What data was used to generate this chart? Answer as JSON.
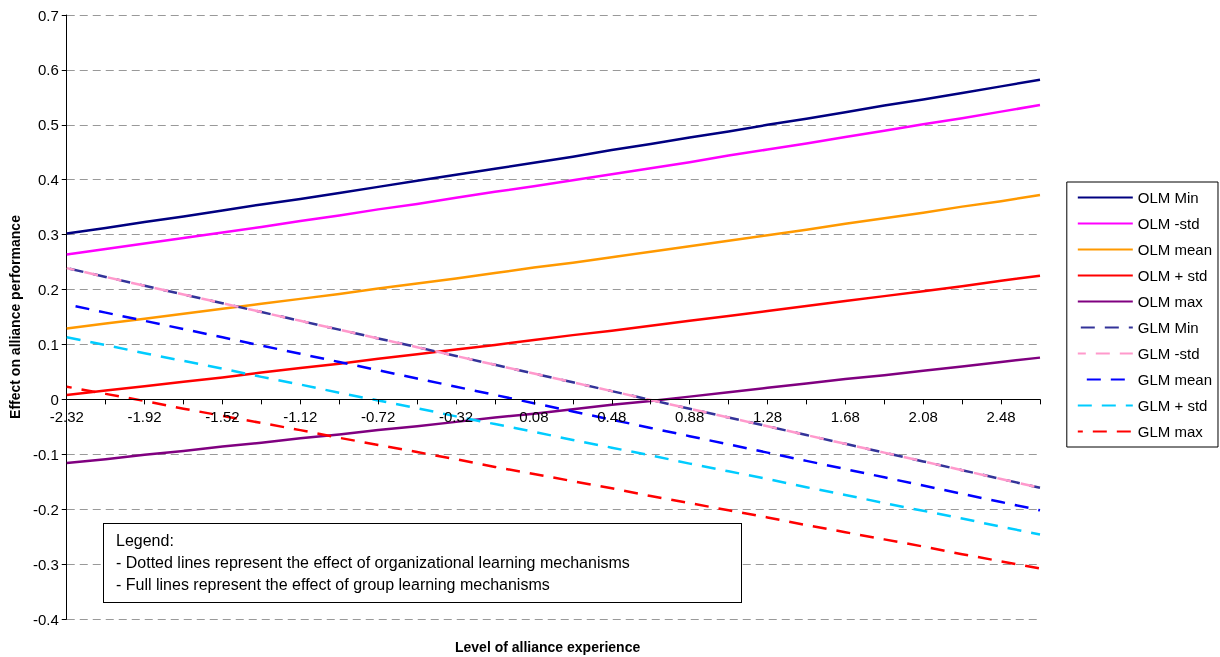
{
  "chart_data": {
    "type": "line",
    "xlabel": "Level of alliance experience",
    "ylabel": "Effect on alliance performance",
    "categories": [
      "-2.32",
      null,
      "-1.92",
      null,
      "-1.52",
      null,
      "-1.12",
      null,
      "-0.72",
      null,
      "-0.32",
      null,
      "0.08",
      null,
      "0.48",
      null,
      "0.88",
      null,
      "1.28",
      null,
      "1.68",
      null,
      "2.08",
      null,
      "2.48",
      null
    ],
    "ylim": [
      -0.4,
      0.7
    ],
    "yticks": [
      -0.4,
      -0.3,
      -0.2,
      -0.1,
      0,
      0.1,
      0.2,
      0.3,
      0.4,
      0.5,
      0.6,
      0.7
    ],
    "grid": "y",
    "legend": "right",
    "marker": "none",
    "annotations": [
      "Legend:",
      "- Dotted lines represent the effect of organizational learning mechanisms",
      "- Full lines represent the effect of group learning mechanisms"
    ],
    "series": [
      {
        "name": "OLM Min",
        "color": "#000080",
        "line_style": "solid",
        "values": [
          0.302,
          0.312,
          0.323,
          0.333,
          0.344,
          0.355,
          0.365,
          0.376,
          0.387,
          0.398,
          0.409,
          0.42,
          0.431,
          0.442,
          0.454,
          0.465,
          0.477,
          0.488,
          0.5,
          0.511,
          0.523,
          0.535,
          0.546,
          0.558,
          0.57,
          0.582
        ]
      },
      {
        "name": "OLM -std",
        "color": "#ff00ff",
        "line_style": "solid",
        "values": [
          0.264,
          0.274,
          0.284,
          0.294,
          0.304,
          0.314,
          0.325,
          0.335,
          0.346,
          0.356,
          0.367,
          0.378,
          0.388,
          0.399,
          0.41,
          0.421,
          0.432,
          0.444,
          0.455,
          0.466,
          0.478,
          0.489,
          0.501,
          0.512,
          0.524,
          0.536
        ]
      },
      {
        "name": "OLM mean",
        "color": "#ff9900",
        "line_style": "solid",
        "values": [
          0.129,
          0.138,
          0.147,
          0.156,
          0.165,
          0.174,
          0.183,
          0.192,
          0.202,
          0.211,
          0.22,
          0.23,
          0.24,
          0.249,
          0.259,
          0.269,
          0.279,
          0.289,
          0.299,
          0.309,
          0.32,
          0.33,
          0.34,
          0.351,
          0.361,
          0.372
        ]
      },
      {
        "name": "OLM + std",
        "color": "#ff0000",
        "line_style": "solid",
        "values": [
          0.008,
          0.016,
          0.024,
          0.032,
          0.04,
          0.049,
          0.057,
          0.065,
          0.074,
          0.082,
          0.091,
          0.099,
          0.108,
          0.117,
          0.125,
          0.134,
          0.143,
          0.152,
          0.161,
          0.17,
          0.179,
          0.188,
          0.197,
          0.206,
          0.216,
          0.225
        ]
      },
      {
        "name": "OLM max",
        "color": "#800080",
        "line_style": "solid",
        "values": [
          -0.116,
          -0.109,
          -0.101,
          -0.094,
          -0.086,
          -0.079,
          -0.071,
          -0.064,
          -0.056,
          -0.049,
          -0.041,
          -0.033,
          -0.026,
          -0.018,
          -0.01,
          -0.003,
          0.005,
          0.013,
          0.021,
          0.029,
          0.037,
          0.044,
          0.052,
          0.06,
          0.068,
          0.076
        ]
      },
      {
        "name": "GLM Min",
        "color": "#333399",
        "line_style": "dashed",
        "values": [
          0.239,
          0.223,
          0.207,
          0.191,
          0.175,
          0.159,
          0.143,
          0.127,
          0.111,
          0.095,
          0.079,
          0.063,
          0.047,
          0.031,
          0.015,
          -0.001,
          -0.017,
          -0.033,
          -0.049,
          -0.065,
          -0.081,
          -0.097,
          -0.113,
          -0.129,
          -0.145,
          -0.161
        ]
      },
      {
        "name": "GLM -std",
        "color": "#ff99cc",
        "line_style": "dashed",
        "values": [
          0.239,
          0.223,
          0.207,
          0.191,
          0.175,
          0.159,
          0.143,
          0.127,
          0.111,
          0.095,
          0.079,
          0.063,
          0.047,
          0.031,
          0.015,
          -0.001,
          -0.017,
          -0.033,
          -0.049,
          -0.065,
          -0.081,
          -0.097,
          -0.113,
          -0.129,
          -0.145,
          -0.161
        ]
      },
      {
        "name": "GLM mean",
        "color": "#0000ff",
        "line_style": "dashed",
        "values": [
          0.173,
          0.158,
          0.143,
          0.128,
          0.113,
          0.098,
          0.083,
          0.068,
          0.053,
          0.038,
          0.023,
          0.008,
          -0.007,
          -0.022,
          -0.037,
          -0.052,
          -0.067,
          -0.082,
          -0.097,
          -0.112,
          -0.127,
          -0.142,
          -0.157,
          -0.172,
          -0.187,
          -0.202
        ]
      },
      {
        "name": "GLM + std",
        "color": "#00ccff",
        "line_style": "dashed",
        "values": [
          0.113,
          0.099,
          0.084,
          0.07,
          0.056,
          0.041,
          0.027,
          0.012,
          -0.002,
          -0.016,
          -0.031,
          -0.045,
          -0.059,
          -0.074,
          -0.088,
          -0.102,
          -0.117,
          -0.131,
          -0.145,
          -0.16,
          -0.174,
          -0.189,
          -0.203,
          -0.217,
          -0.232,
          -0.246
        ]
      },
      {
        "name": "GLM max",
        "color": "#ff0000",
        "line_style": "dashed",
        "values": [
          0.023,
          0.01,
          -0.003,
          -0.017,
          -0.03,
          -0.043,
          -0.056,
          -0.07,
          -0.083,
          -0.096,
          -0.109,
          -0.123,
          -0.136,
          -0.149,
          -0.162,
          -0.176,
          -0.189,
          -0.202,
          -0.215,
          -0.229,
          -0.242,
          -0.255,
          -0.268,
          -0.282,
          -0.295,
          -0.308
        ]
      }
    ]
  }
}
